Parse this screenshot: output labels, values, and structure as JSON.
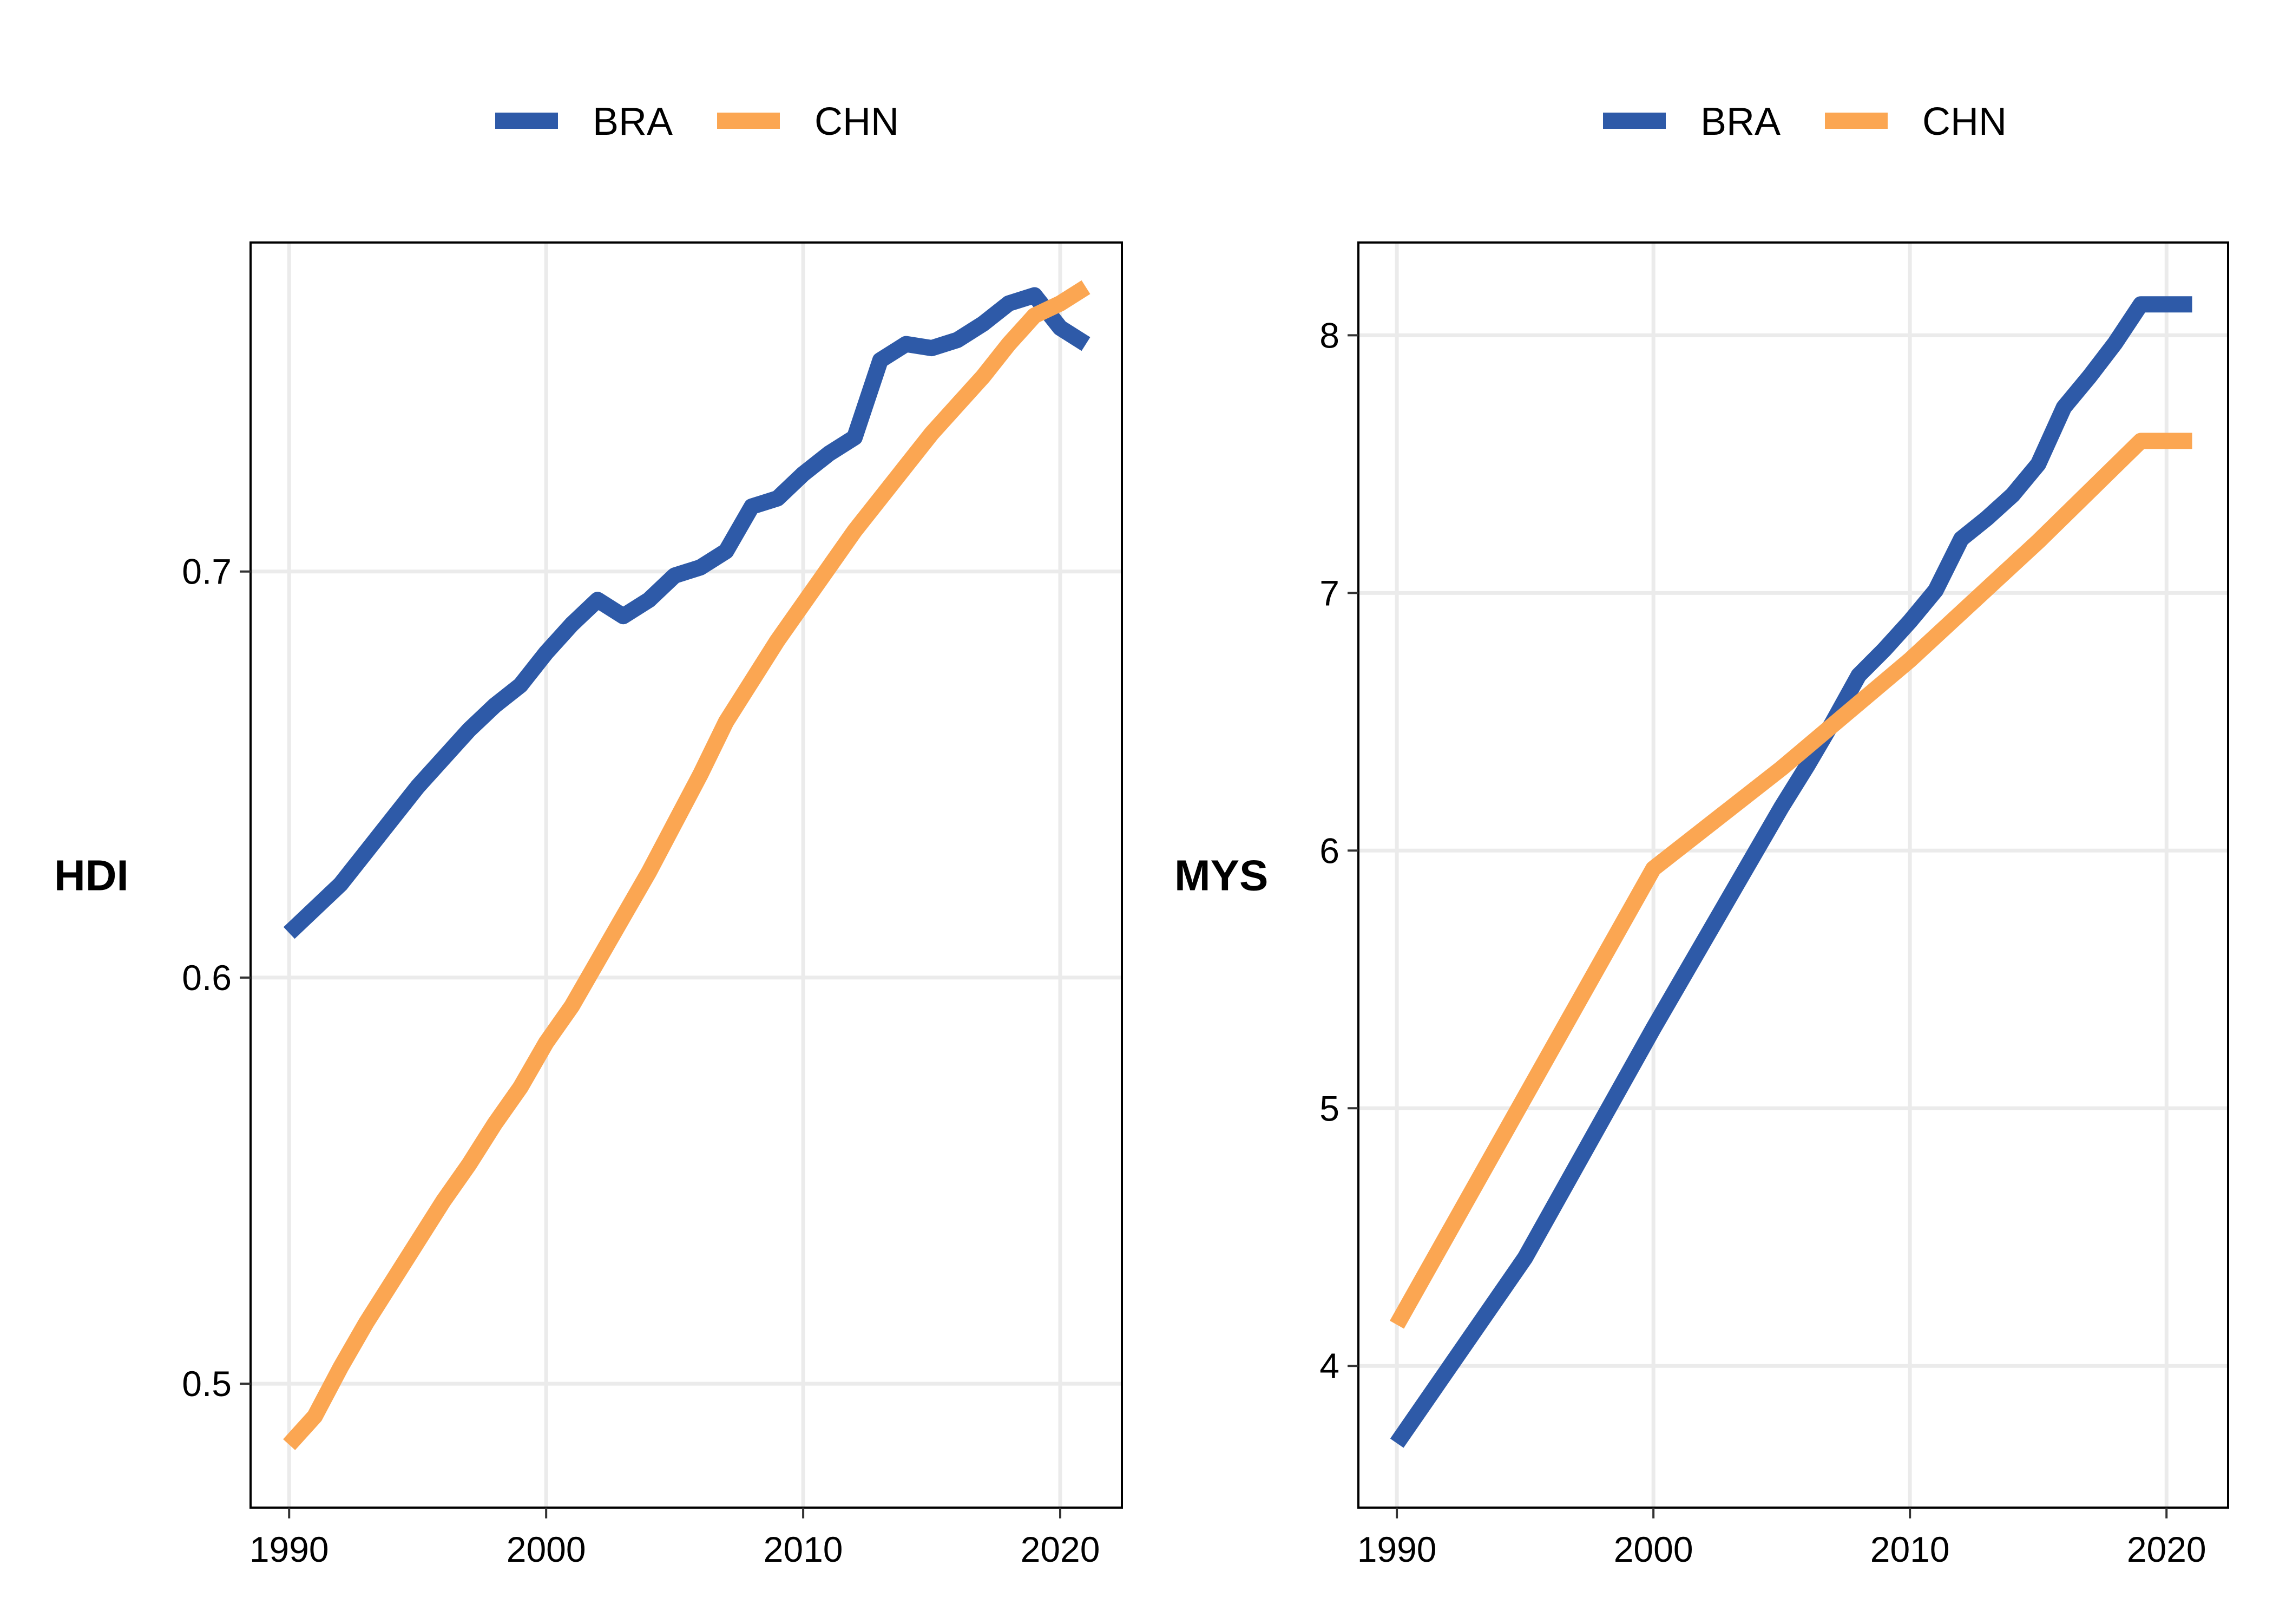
{
  "chart_data": [
    {
      "type": "line",
      "ylabel": "HDI",
      "xlabel": "",
      "xlim": [
        1988.5,
        2022.4
      ],
      "ylim": [
        0.4695,
        0.781
      ],
      "x_ticks": [
        1990,
        2000,
        2010,
        2020
      ],
      "y_ticks": [
        0.5,
        0.6,
        0.7
      ],
      "y_tick_labels": [
        "0.5",
        "0.6",
        "0.7"
      ],
      "grid": true,
      "legend": "top",
      "colors": {
        "BRA": "#2E5AA8",
        "CHN": "#FBA652"
      },
      "series": [
        {
          "name": "BRA",
          "x": [
            1990,
            1991,
            1992,
            1993,
            1994,
            1995,
            1996,
            1997,
            1998,
            1999,
            2000,
            2001,
            2002,
            2003,
            2004,
            2005,
            2006,
            2007,
            2008,
            2009,
            2010,
            2011,
            2012,
            2013,
            2014,
            2015,
            2016,
            2017,
            2018,
            2019,
            2020,
            2021
          ],
          "values": [
            0.611,
            0.617,
            0.623,
            0.631,
            0.639,
            0.647,
            0.654,
            0.661,
            0.667,
            0.672,
            0.68,
            0.687,
            0.693,
            0.689,
            0.693,
            0.699,
            0.701,
            0.705,
            0.716,
            0.718,
            0.724,
            0.729,
            0.733,
            0.752,
            0.756,
            0.755,
            0.757,
            0.761,
            0.766,
            0.768,
            0.76,
            0.756
          ]
        },
        {
          "name": "CHN",
          "x": [
            1990,
            1991,
            1992,
            1993,
            1994,
            1995,
            1996,
            1997,
            1998,
            1999,
            2000,
            2001,
            2002,
            2003,
            2004,
            2005,
            2006,
            2007,
            2008,
            2009,
            2010,
            2011,
            2012,
            2013,
            2014,
            2015,
            2016,
            2017,
            2018,
            2019,
            2020,
            2021
          ],
          "values": [
            0.485,
            0.492,
            0.504,
            0.515,
            0.525,
            0.535,
            0.545,
            0.554,
            0.564,
            0.573,
            0.584,
            0.593,
            0.604,
            0.615,
            0.626,
            0.638,
            0.65,
            0.663,
            0.673,
            0.683,
            0.692,
            0.701,
            0.71,
            0.718,
            0.726,
            0.734,
            0.741,
            0.748,
            0.756,
            0.763,
            0.766,
            0.77
          ]
        }
      ]
    },
    {
      "type": "line",
      "ylabel": "MYS",
      "xlabel": "",
      "xlim": [
        1988.5,
        2022.4
      ],
      "ylim": [
        3.45,
        8.36
      ],
      "x_ticks": [
        1990,
        2000,
        2010,
        2020
      ],
      "y_ticks": [
        4,
        5,
        6,
        7,
        8
      ],
      "y_tick_labels": [
        "4",
        "5",
        "6",
        "7",
        "8"
      ],
      "grid": true,
      "legend": "top",
      "colors": {
        "BRA": "#2E5AA8",
        "CHN": "#FBA652"
      },
      "series": [
        {
          "name": "BRA",
          "x": [
            1990,
            1995,
            2000,
            2005,
            2006,
            2007,
            2008,
            2009,
            2010,
            2011,
            2012,
            2013,
            2014,
            2015,
            2016,
            2017,
            2018,
            2019,
            2020,
            2021
          ],
          "values": [
            3.7,
            4.42,
            5.31,
            6.17,
            6.33,
            6.5,
            6.68,
            6.78,
            6.89,
            7.01,
            7.21,
            7.29,
            7.38,
            7.5,
            7.72,
            7.84,
            7.97,
            8.12,
            8.12,
            8.12
          ]
        },
        {
          "name": "CHN",
          "x": [
            1990,
            2000,
            2005,
            2010,
            2015,
            2019,
            2020,
            2021
          ],
          "values": [
            4.16,
            5.93,
            6.32,
            6.74,
            7.2,
            7.59,
            7.59,
            7.59
          ]
        }
      ]
    }
  ]
}
